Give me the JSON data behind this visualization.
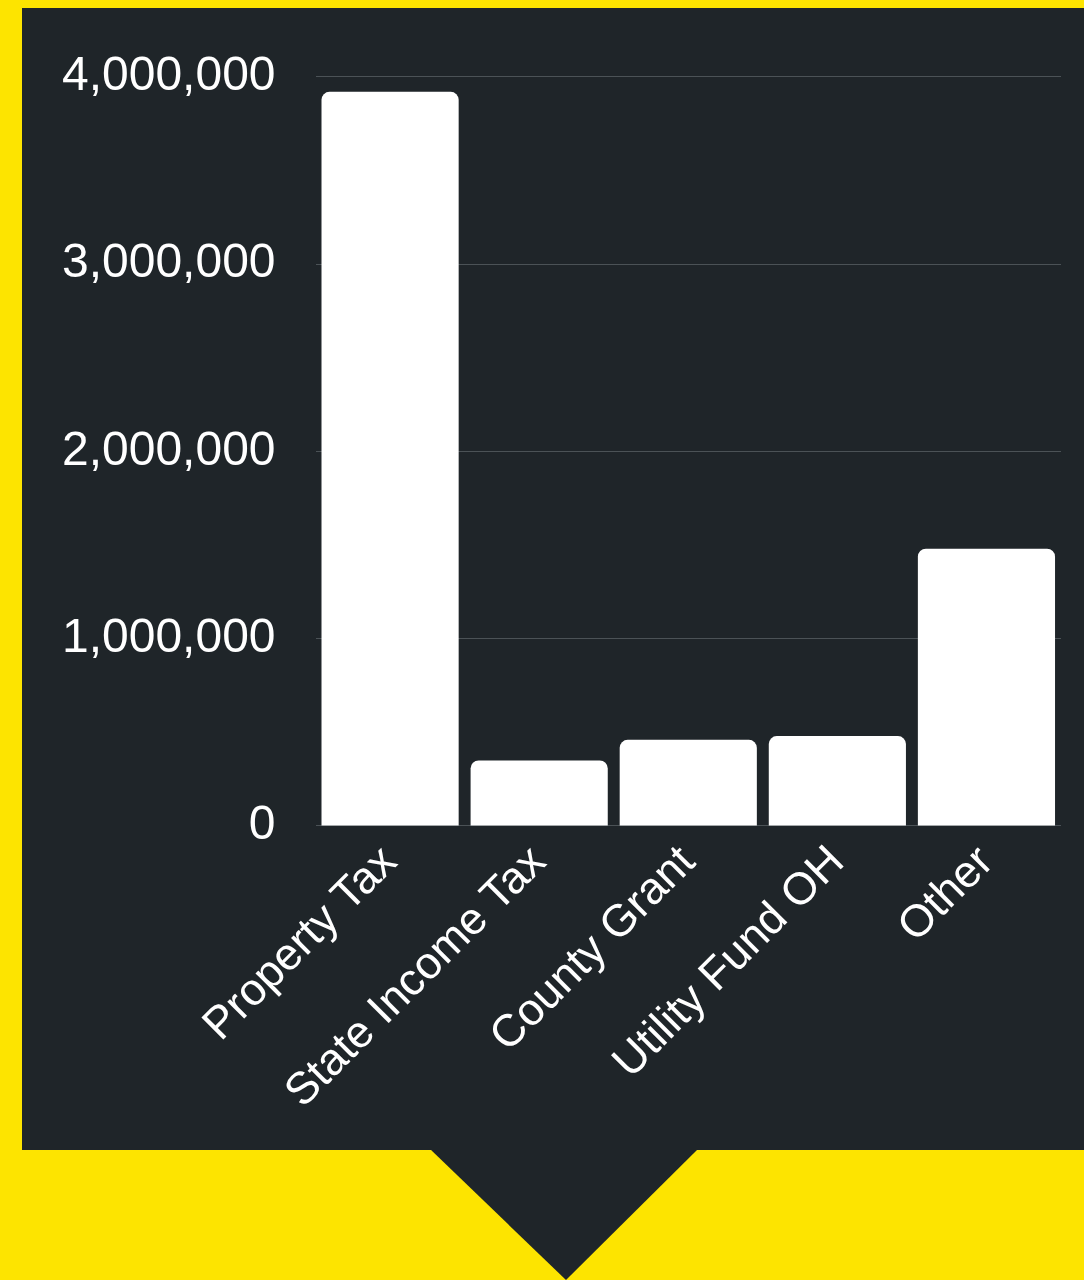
{
  "chart_data": {
    "type": "bar",
    "categories": [
      "Property Tax",
      "State Income Tax",
      "County Grant",
      "Utility Fund OH",
      "Other"
    ],
    "values": [
      3920000,
      350000,
      460000,
      480000,
      1480000
    ],
    "color": "#ffffff",
    "ylim": [
      0,
      4000000
    ],
    "yticks": [
      {
        "value": 0,
        "label": "0"
      },
      {
        "value": 1000000,
        "label": "1,000,000"
      },
      {
        "value": 2000000,
        "label": "2,000,000"
      },
      {
        "value": 3000000,
        "label": "3,000,000"
      },
      {
        "value": 4000000,
        "label": "4,000,000"
      }
    ],
    "grid": "y",
    "legend": false
  }
}
